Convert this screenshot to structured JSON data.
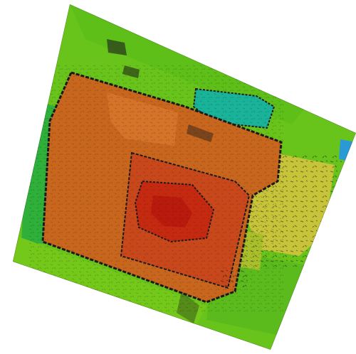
{
  "image": {
    "kind": "false-color elevation raster (rotated tile)",
    "palette": {
      "background": "#ffffff",
      "ground_low": "#3fb61a",
      "ground_mid": "#68c41a",
      "ground_high": "#8ad11f",
      "teal": "#19b39a",
      "blue": "#2a9ad6",
      "yellow": "#c7c43a",
      "olive": "#a9c02a",
      "orange": "#c8661e",
      "orange_light": "#d7762c",
      "red_orange": "#c9481b",
      "red": "#c52a10",
      "dark_red": "#b91a0c",
      "edge": "#1a1a1a"
    }
  }
}
